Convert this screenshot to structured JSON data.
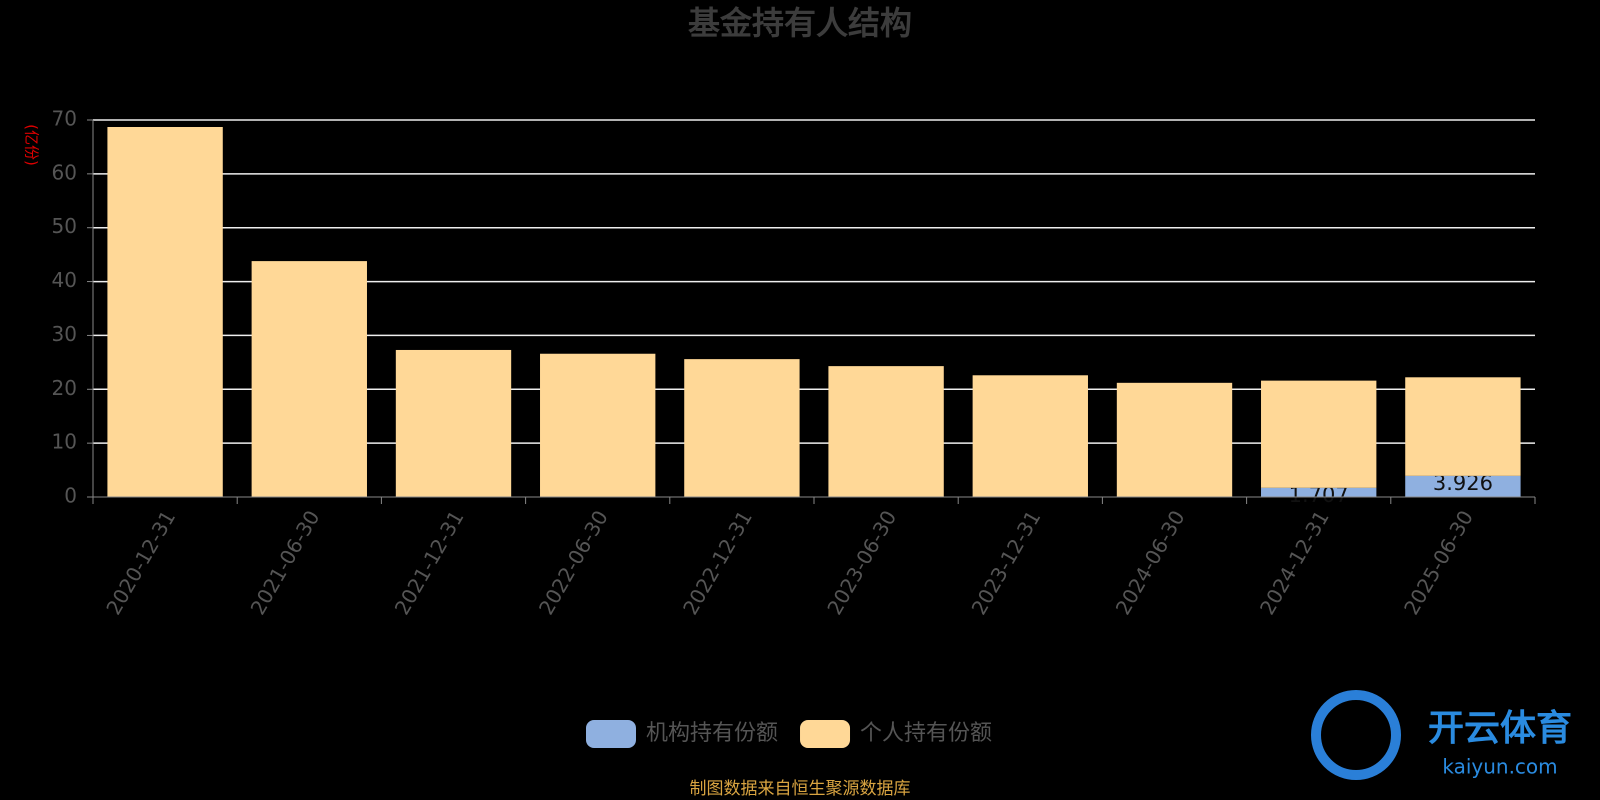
{
  "chart_data": {
    "type": "stacked_bar",
    "title": "基金持有人结构",
    "y_label": "(亿份)",
    "categories": [
      "2020-12-31",
      "2021-06-30",
      "2021-12-31",
      "2022-06-30",
      "2022-12-31",
      "2023-06-30",
      "2023-12-31",
      "2024-06-30",
      "2024-12-31",
      "2025-06-30"
    ],
    "series": [
      {
        "name": "机构持有份额",
        "color": "#8fb0e0",
        "values": [
          0,
          0,
          0,
          0,
          0,
          0,
          0,
          0,
          1.707,
          3.926
        ]
      },
      {
        "name": "个人持有份额",
        "color": "#ffd897",
        "values": [
          68.7,
          43.8,
          27.3,
          26.6,
          25.6,
          24.3,
          22.6,
          21.2,
          19.9,
          18.3
        ]
      }
    ],
    "ylim": [
      0,
      70
    ],
    "yticks": [
      0,
      10,
      20,
      30,
      40,
      50,
      60,
      70
    ],
    "grid": true,
    "source": "制图数据来自恒生聚源数据库"
  },
  "watermark": {
    "name": "开云体育",
    "site": "kaiyun.com"
  }
}
